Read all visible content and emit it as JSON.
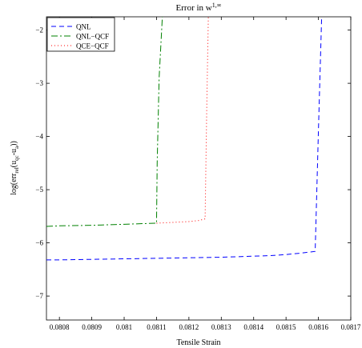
{
  "chart_data": {
    "type": "line",
    "title": "Error in w^{1,∞}",
    "title_main": "Error in w",
    "title_sup": "1,∞",
    "xlabel": "Tensile Strain",
    "ylabel": {
      "p1": "log(err",
      "s1": "rel",
      "p2": "(u",
      "s2": "qc",
      "p3": "-u",
      "s3": "a",
      "p4": "))"
    },
    "xlim": [
      0.08076,
      0.0817
    ],
    "ylim": [
      -7.45,
      -1.75
    ],
    "xticks": [
      0.0808,
      0.0809,
      0.081,
      0.0811,
      0.0812,
      0.0813,
      0.0814,
      0.0815,
      0.0816,
      0.0817
    ],
    "xtick_labels": [
      "0.0808",
      "0.0809",
      "0.081",
      "0.0811",
      "0.0812",
      "0.0813",
      "0.0814",
      "0.0815",
      "0.0816",
      "0.0817"
    ],
    "yticks": [
      -7,
      -6,
      -5,
      -4,
      -3,
      -2
    ],
    "ytick_labels": [
      "−7",
      "−6",
      "−5",
      "−4",
      "−3",
      "−2"
    ],
    "grid": false,
    "legend_position": "top-left",
    "series": [
      {
        "name": "QNL",
        "color": "#0000ff",
        "dash": "6,4",
        "x": [
          0.08076,
          0.0808,
          0.0809,
          0.081,
          0.0811,
          0.0812,
          0.0813,
          0.0814,
          0.08145,
          0.0815,
          0.08155,
          0.08159,
          0.0816,
          0.08161
        ],
        "y": [
          -6.32,
          -6.32,
          -6.31,
          -6.3,
          -6.29,
          -6.28,
          -6.27,
          -6.25,
          -6.24,
          -6.22,
          -6.19,
          -6.16,
          -3.9,
          -1.75
        ]
      },
      {
        "name": "QNL−QCF",
        "color": "#008000",
        "dash": "8,3,2,3",
        "x": [
          0.08076,
          0.0808,
          0.0809,
          0.081,
          0.08105,
          0.0811,
          0.081102,
          0.081108,
          0.081118
        ],
        "y": [
          -5.69,
          -5.68,
          -5.67,
          -5.65,
          -5.64,
          -5.63,
          -4.5,
          -2.9,
          -1.75
        ]
      },
      {
        "name": "QCE−QCF",
        "color": "#ff0000",
        "dash": "1,3",
        "x": [
          0.0811,
          0.0812,
          0.08123,
          0.08125,
          0.081255,
          0.08126
        ],
        "y": [
          -5.63,
          -5.6,
          -5.58,
          -5.55,
          -3.5,
          -1.75
        ]
      }
    ]
  }
}
